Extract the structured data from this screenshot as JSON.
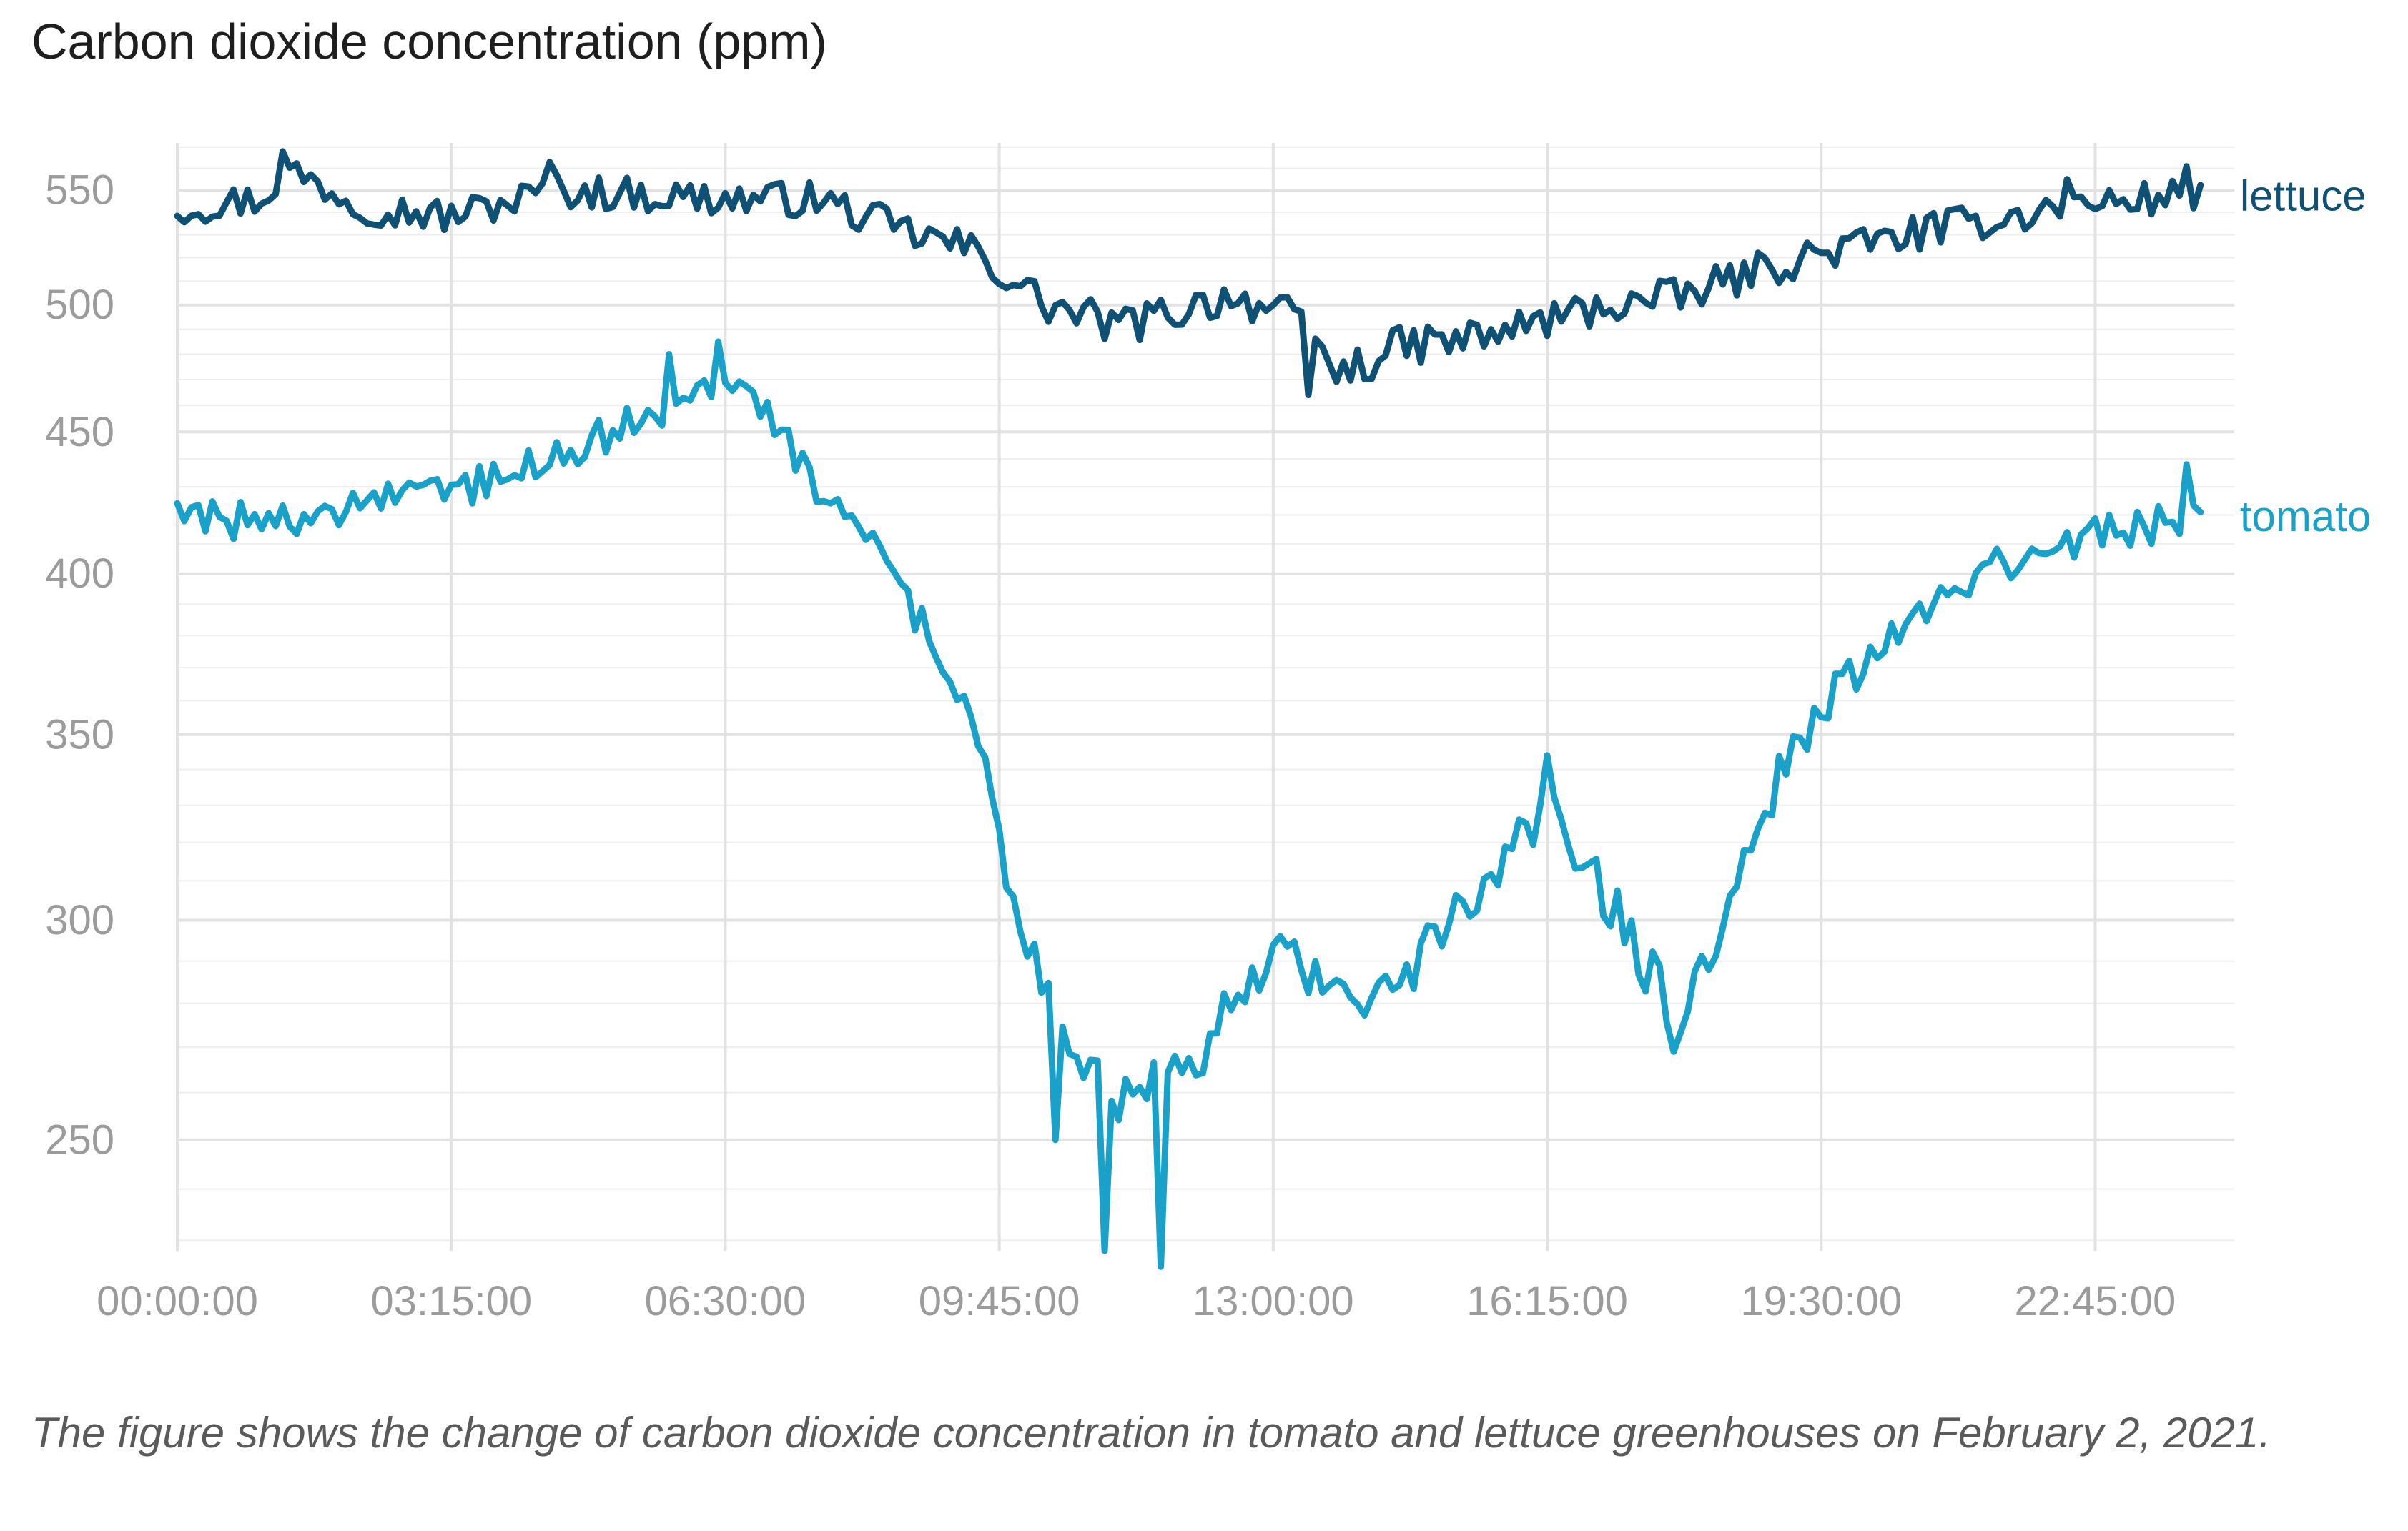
{
  "chart_data": {
    "type": "line",
    "title": "Carbon dioxide concentration (ppm)",
    "caption": "The figure shows the change of carbon dioxide concentration in tomato and lettuce greenhouses on February 2, 2021.",
    "xlabel": "",
    "ylabel": "",
    "y_scale": "log",
    "ylim": [
      228,
      572
    ],
    "y_ticks": [
      250,
      300,
      350,
      400,
      450,
      500,
      550
    ],
    "y_tick_labels": [
      "250",
      "300",
      "350",
      "400",
      "450",
      "500",
      "550"
    ],
    "y_minor_step": 10,
    "x_unit": "hours",
    "xlim": [
      0,
      24.4
    ],
    "x_ticks": [
      0,
      3.25,
      6.5,
      9.75,
      13,
      16.25,
      19.5,
      22.75
    ],
    "x_tick_labels": [
      "00:00:00",
      "03:15:00",
      "06:30:00",
      "09:45:00",
      "13:00:00",
      "16:15:00",
      "19:30:00",
      "22:45:00"
    ],
    "grid": true,
    "legend": "direct labels at right end of lines",
    "series": [
      {
        "name": "lettuce",
        "color": "#0f5075",
        "anchors": [
          [
            0,
            542
          ],
          [
            1,
            546
          ],
          [
            1.3,
            560
          ],
          [
            2.2,
            543
          ],
          [
            3.2,
            538
          ],
          [
            4.5,
            550
          ],
          [
            6.5,
            546
          ],
          [
            7.6,
            546
          ],
          [
            8.6,
            532
          ],
          [
            9.4,
            524
          ],
          [
            10.3,
            500
          ],
          [
            11.2,
            491
          ],
          [
            12.5,
            504
          ],
          [
            13.2,
            495
          ],
          [
            13.8,
            472
          ],
          [
            14.5,
            483
          ],
          [
            15.5,
            487
          ],
          [
            16.25,
            494
          ],
          [
            17.0,
            500
          ],
          [
            17.8,
            503
          ],
          [
            18.8,
            515
          ],
          [
            19.5,
            522
          ],
          [
            20.5,
            530
          ],
          [
            22.0,
            540
          ],
          [
            23.0,
            545
          ],
          [
            24.0,
            548
          ]
        ],
        "noise": 8,
        "spikes": [
          [
            1.28,
            568
          ],
          [
            4.4,
            563
          ],
          [
            13.4,
            464
          ],
          [
            23.8,
            561
          ],
          [
            22.4,
            555
          ],
          [
            8.2,
            538
          ]
        ]
      },
      {
        "name": "tomato",
        "color": "#1aa1c9",
        "anchors": [
          [
            0,
            420
          ],
          [
            0.5,
            420
          ],
          [
            1.0,
            416
          ],
          [
            2.0,
            423
          ],
          [
            3.0,
            426
          ],
          [
            4.0,
            435
          ],
          [
            5.0,
            448
          ],
          [
            6.0,
            462
          ],
          [
            6.5,
            472
          ],
          [
            7.0,
            455
          ],
          [
            7.5,
            433
          ],
          [
            8.2,
            415
          ],
          [
            9.0,
            375
          ],
          [
            9.5,
            345
          ],
          [
            10.0,
            300
          ],
          [
            10.5,
            275
          ],
          [
            11.0,
            260
          ],
          [
            11.4,
            262
          ],
          [
            12.0,
            262
          ],
          [
            12.6,
            285
          ],
          [
            13.0,
            290
          ],
          [
            13.6,
            287
          ],
          [
            14.3,
            282
          ],
          [
            15.0,
            295
          ],
          [
            15.6,
            313
          ],
          [
            16.25,
            330
          ],
          [
            16.8,
            312
          ],
          [
            17.4,
            290
          ],
          [
            17.8,
            278
          ],
          [
            18.3,
            297
          ],
          [
            19.0,
            337
          ],
          [
            19.5,
            358
          ],
          [
            20.0,
            372
          ],
          [
            21.0,
            393
          ],
          [
            22.0,
            408
          ],
          [
            23.0,
            414
          ],
          [
            24.0,
            420
          ]
        ],
        "noise": 7,
        "spikes": [
          [
            11.0,
            228
          ],
          [
            11.65,
            225
          ],
          [
            10.45,
            250
          ],
          [
            16.25,
            344
          ],
          [
            17.72,
            269
          ],
          [
            23.8,
            438
          ],
          [
            6.45,
            485
          ],
          [
            5.8,
            480
          ]
        ]
      }
    ],
    "series_labels": [
      "lettuce",
      "tomato"
    ]
  },
  "colors": {
    "grid_major": "#e2e2e2",
    "grid_minor": "#eeeeee",
    "tick_text": "#9b9b9b",
    "title_text": "#1e1e1e",
    "caption_text": "#5a5a5a"
  }
}
